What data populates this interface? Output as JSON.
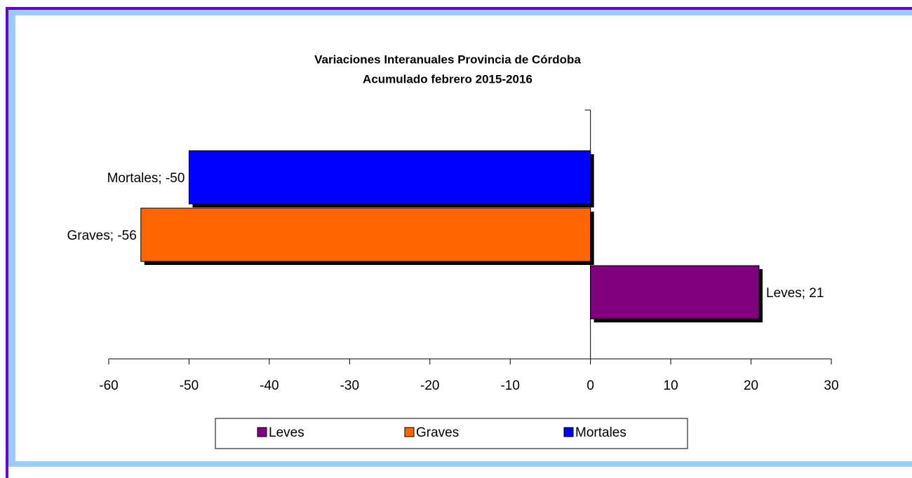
{
  "chart_data": {
    "type": "hbar",
    "title": "Variaciones Interanuales Provincia de Córdoba",
    "subtitle": "Acumulado febrero 2015-2016",
    "series": [
      {
        "name": "Leves",
        "color": "#800080",
        "values": [
          21
        ],
        "value_labels": [
          "Leves; 21"
        ]
      },
      {
        "name": "Graves",
        "color": "#ff6600",
        "values": [
          -56
        ],
        "value_labels": [
          "Graves; -56"
        ]
      },
      {
        "name": "Mortales",
        "color": "#0000ff",
        "values": [
          -50
        ],
        "value_labels": [
          "Mortales; -50"
        ]
      }
    ],
    "xlim": [
      -60,
      30
    ],
    "xticks": [
      -60,
      -50,
      -40,
      -30,
      -20,
      -10,
      0,
      10,
      20,
      30
    ],
    "legend": "bottom"
  }
}
